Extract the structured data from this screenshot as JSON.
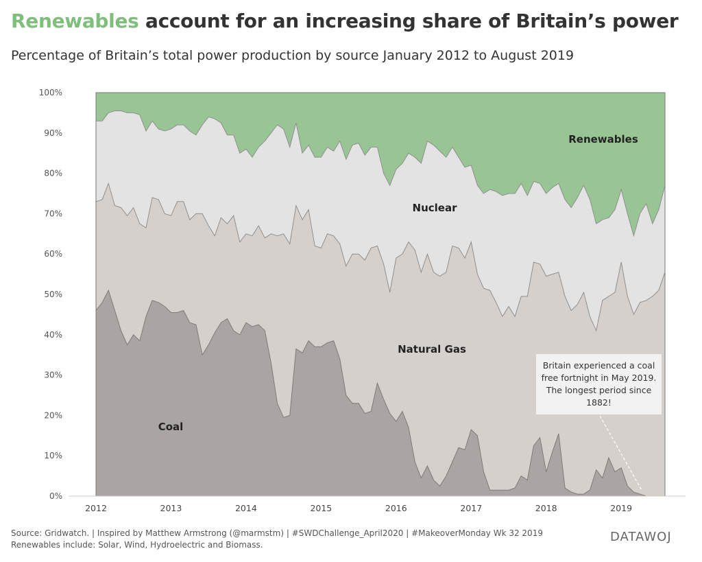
{
  "header": {
    "title_highlight": "Renewables",
    "title_rest": " account for an increasing share of Britain’s power",
    "subtitle": "Percentage of Britain’s total power production by source January 2012 to August 2019"
  },
  "footer": {
    "line1": "Source: Gridwatch. | Inspired by Matthew Armstrong (@marmstm) | #SWDChallenge_April2020 | #MakeoverMonday Wk 32 2019",
    "line2": "Renewables include: Solar, Wind, Hydroelectric and Biomass.",
    "logo_text": "DATAWOJ"
  },
  "annotation": {
    "text": "Britain experienced a coal free fortnight in May 2019. The longest period since 1882!"
  },
  "chart_data": {
    "type": "area",
    "stacked": true,
    "x_start": "2012-01",
    "x_end": "2019-08",
    "x_tick_labels": [
      "2012",
      "2013",
      "2014",
      "2015",
      "2016",
      "2017",
      "2018",
      "2019"
    ],
    "y_tick_labels": [
      "0%",
      "10%",
      "20%",
      "30%",
      "40%",
      "50%",
      "60%",
      "70%",
      "80%",
      "90%",
      "100%"
    ],
    "ylim": [
      0,
      100
    ],
    "series_labels": [
      {
        "name": "Coal",
        "color": "#aaa5a2"
      },
      {
        "name": "Natural Gas",
        "color": "#d6d0cd"
      },
      {
        "name": "Nuclear",
        "color": "#e4e3e4"
      },
      {
        "name": "Renewables",
        "color": "#98c593"
      }
    ],
    "cumulative": {
      "coal": [
        46,
        48,
        51,
        46,
        41,
        37.5,
        40,
        38.5,
        44.5,
        48.5,
        48,
        47,
        45.5,
        45.5,
        46,
        43,
        42.5,
        35,
        37.5,
        40.5,
        43,
        44,
        41,
        40,
        43,
        42,
        42.5,
        41,
        33,
        23,
        19.5,
        20,
        36.5,
        35.5,
        38.5,
        37,
        37,
        38,
        38.5,
        34,
        25,
        23,
        23,
        20.5,
        21,
        28,
        24,
        20.5,
        18.5,
        21,
        17,
        8.5,
        4.5,
        7.5,
        4,
        2.5,
        5,
        8.5,
        12,
        11.5,
        16.5,
        15,
        6,
        1.5,
        1.5,
        1.5,
        1.5,
        2,
        5,
        4,
        12.5,
        14.5,
        6,
        11,
        15.5,
        2,
        1,
        0.5,
        0.5,
        1.5,
        6.5,
        4.5,
        9.5,
        6,
        7,
        2.5,
        1,
        0.5,
        0,
        0,
        0,
        0
      ],
      "gas": [
        73,
        73.5,
        77.5,
        72,
        71.5,
        69.5,
        71.5,
        67.5,
        66.5,
        74,
        73.5,
        70,
        69.5,
        73,
        73,
        68.5,
        70,
        70,
        67,
        64.5,
        69,
        67.5,
        69.5,
        63,
        65,
        64.5,
        67,
        64,
        65,
        64.5,
        65,
        62.5,
        72,
        68.5,
        71,
        62,
        61.5,
        65,
        64.5,
        62.5,
        57,
        60,
        60,
        58.5,
        61.5,
        62,
        57.5,
        50.5,
        59,
        60,
        63,
        61,
        55.5,
        60,
        55.5,
        54.5,
        55.5,
        62,
        61.5,
        59,
        63,
        55,
        51.5,
        51,
        48,
        44.5,
        47,
        44.5,
        49.5,
        49.5,
        58,
        57.5,
        54.5,
        55,
        55.5,
        49.5,
        46,
        47.5,
        50.5,
        44.5,
        41,
        48.5,
        49.5,
        50.5,
        58,
        49.5,
        45,
        48,
        48.5,
        49.5,
        51,
        55.5
      ],
      "nuclear": [
        93,
        93,
        95,
        95.5,
        95.5,
        95,
        95,
        94.5,
        90.5,
        93,
        91,
        90.5,
        91,
        92,
        92,
        90.5,
        89.5,
        92,
        94,
        93.5,
        92.5,
        89.5,
        89.5,
        85,
        86,
        84,
        86.5,
        88,
        90,
        92,
        91,
        86.5,
        92.5,
        85,
        87,
        84,
        84,
        86.5,
        85.5,
        88,
        83.5,
        87,
        87.5,
        84.5,
        86.5,
        86.5,
        80,
        77,
        81,
        82.5,
        85,
        84,
        82.5,
        88,
        87,
        85.5,
        84,
        86.5,
        84,
        81.5,
        82,
        77,
        75,
        76,
        75.5,
        74.5,
        75,
        75,
        77.5,
        74.5,
        78,
        77.5,
        75,
        76.5,
        77.5,
        73.5,
        71.5,
        74,
        77,
        73.5,
        67.5,
        68.5,
        69,
        71,
        76,
        70,
        64.5,
        70,
        72.5,
        67.5,
        71,
        77
      ]
    }
  }
}
